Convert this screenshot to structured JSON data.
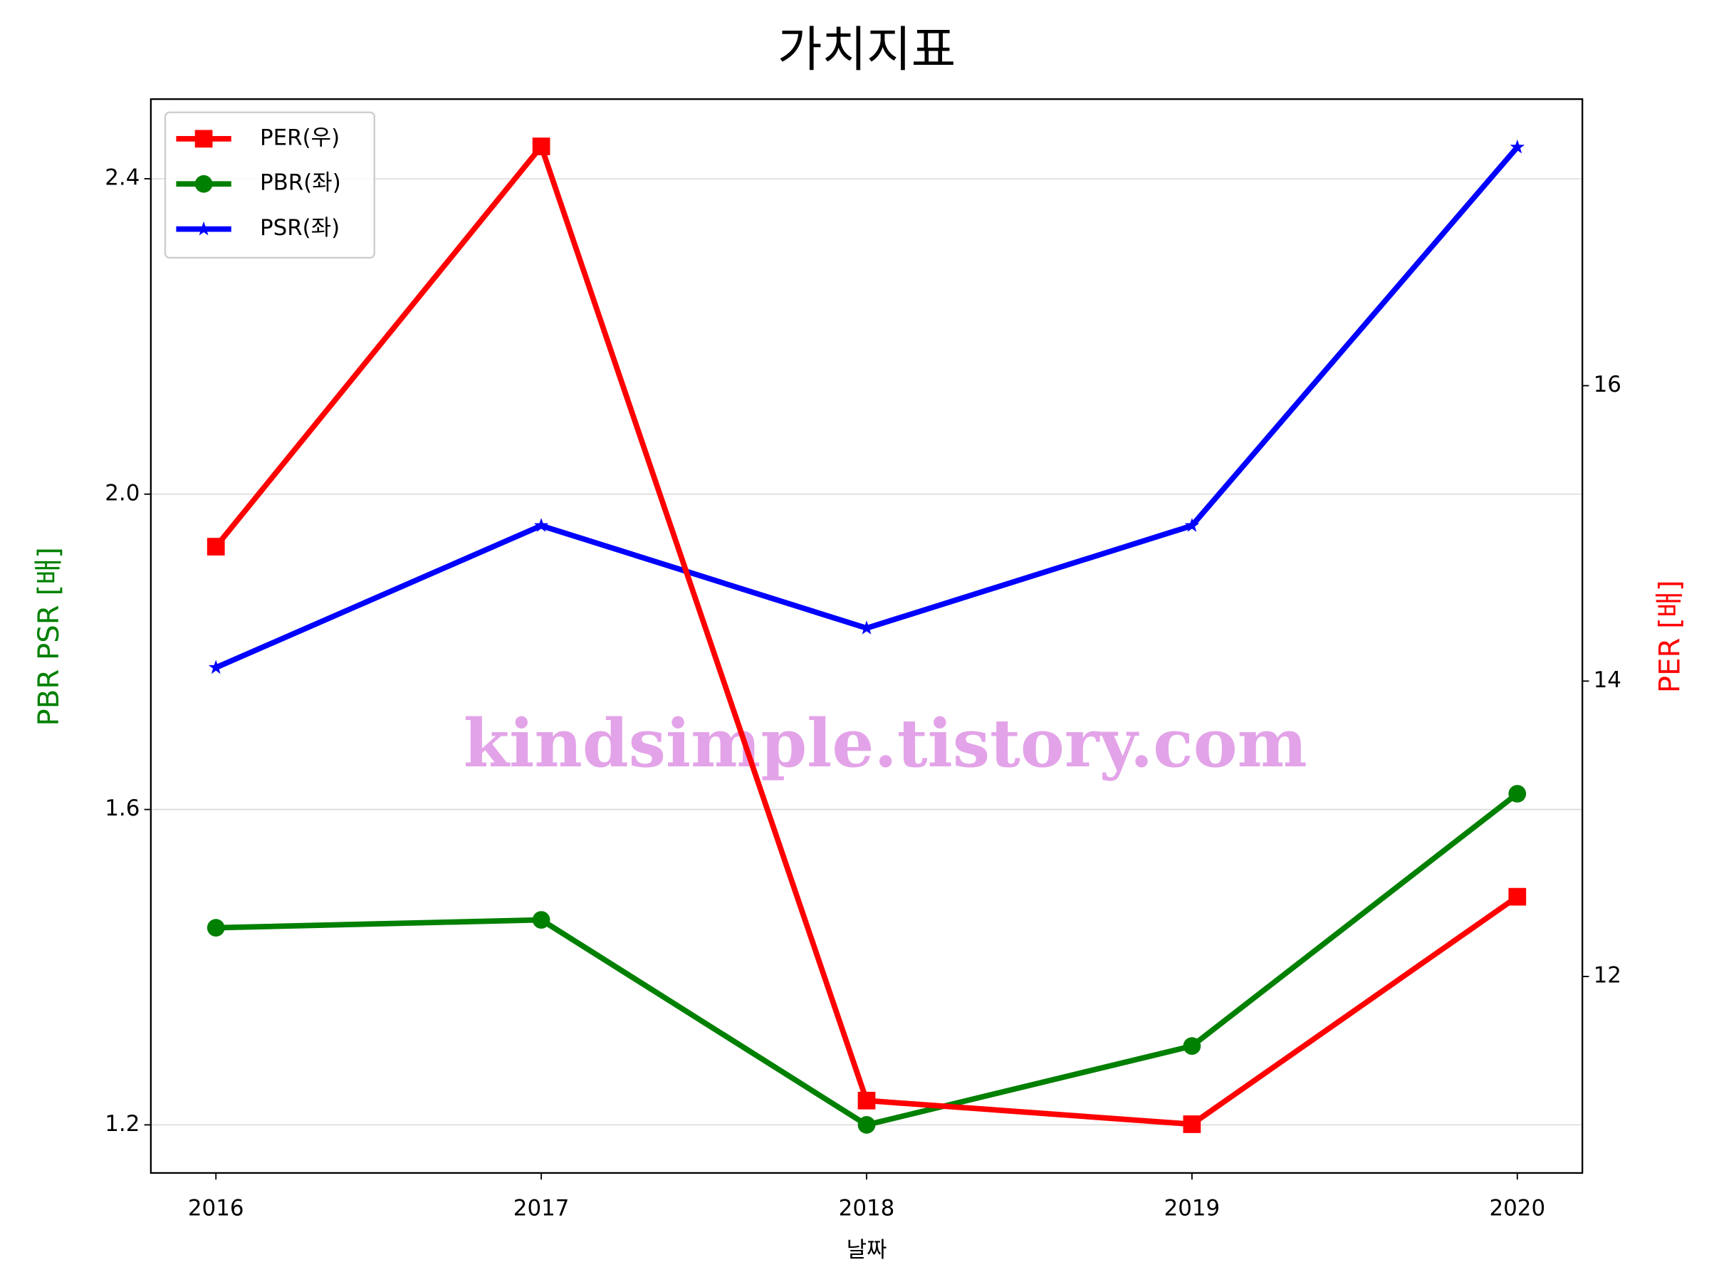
{
  "chart_data": {
    "type": "line",
    "title": "가치지표",
    "xlabel": "날짜",
    "ylabel": "PBR PSR [배]",
    "ylabel_color": "#008000",
    "y2label": "PER [배]",
    "y2label_color": "#ff0000",
    "watermark": "kindsimple.tistory.com",
    "x": [
      2016,
      2017,
      2018,
      2019,
      2020
    ],
    "xlim": [
      2015.8,
      2020.2
    ],
    "xticks": [
      2016,
      2017,
      2018,
      2019,
      2020
    ],
    "ylim": [
      1.139,
      2.501
    ],
    "yticks": [
      1.2,
      1.6,
      {
        "value": 2,
        "label": "2.0"
      },
      2.4
    ],
    "y2lim": [
      10.67,
      17.94
    ],
    "y2ticks": [
      12,
      14,
      16
    ],
    "grid": true,
    "legend": "upper left",
    "series": [
      {
        "name": "PER(우)",
        "color": "#ff0000",
        "marker": "square",
        "axis": "y2",
        "values": [
          14.91,
          17.62,
          11.16,
          11.0,
          12.54
        ]
      },
      {
        "name": "PBR(좌)",
        "color": "#008000",
        "marker": "circle",
        "values": [
          1.45,
          1.46,
          1.2,
          1.3,
          1.62
        ]
      },
      {
        "name": "PSR(좌)",
        "color": "#0000ff",
        "marker": "star",
        "values": [
          1.78,
          1.96,
          1.83,
          1.96,
          2.44
        ]
      }
    ]
  }
}
